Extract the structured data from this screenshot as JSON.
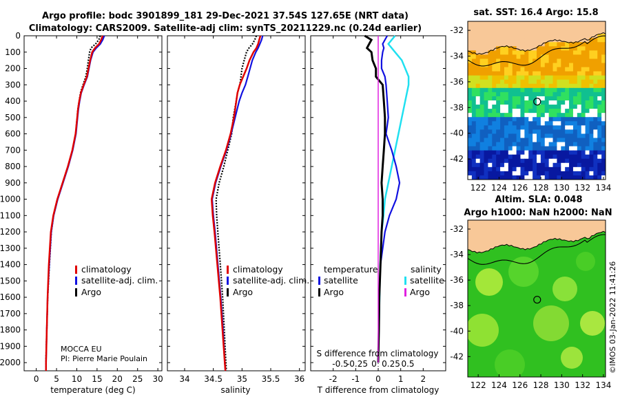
{
  "header": {
    "line1": "Argo profile: bodc 3901899_181 29-Dec-2021 37.54S 127.65E (NRT data)",
    "line2": "Climatology: CARS2009. Satellite-adj clim: synTS_20211229.nc (0.24d earlier)"
  },
  "colors": {
    "climatology": "#e00000",
    "satellite": "#1010e0",
    "argo": "#000000",
    "sal_satellite": "#20e0f0",
    "sal_argo": "#e020e0",
    "land": "#f8c898"
  },
  "depth_ticks": [
    "0",
    "100",
    "200",
    "300",
    "400",
    "500",
    "600",
    "700",
    "800",
    "900",
    "1000",
    "1100",
    "1200",
    "1300",
    "1400",
    "1500",
    "1600",
    "1700",
    "1800",
    "1900",
    "2000"
  ],
  "chart_data": [
    {
      "type": "line",
      "name": "temperature",
      "xlabel": "temperature (deg C)",
      "ylabel": "",
      "xlim": [
        -3,
        31
      ],
      "ylim": [
        2050,
        0
      ],
      "xticks": [
        "0",
        "5",
        "10",
        "15",
        "20",
        "25",
        "30"
      ],
      "xtick_values": [
        0,
        5,
        10,
        15,
        20,
        25,
        30
      ],
      "depth": [
        0,
        25,
        50,
        75,
        100,
        150,
        200,
        250,
        300,
        350,
        400,
        450,
        500,
        600,
        700,
        800,
        900,
        1000,
        1100,
        1200,
        1400,
        1600,
        1800,
        2000,
        2050
      ],
      "series": [
        {
          "name": "climatology",
          "values": [
            16.4,
            16.0,
            15.5,
            14.5,
            13.8,
            13.3,
            12.9,
            12.5,
            11.7,
            11.0,
            10.6,
            10.3,
            10.1,
            9.7,
            8.9,
            7.8,
            6.5,
            5.2,
            4.2,
            3.6,
            3.1,
            2.8,
            2.6,
            2.4,
            2.4
          ]
        },
        {
          "name": "satellite-adj. clim.",
          "values": [
            16.8,
            16.4,
            15.8,
            14.8,
            14.0,
            13.4,
            13.0,
            12.6,
            11.8,
            11.1,
            10.7,
            10.4,
            10.2,
            9.8,
            9.0,
            7.9,
            6.6,
            5.3,
            4.3,
            3.7,
            3.2,
            2.8,
            2.6,
            2.4,
            2.4
          ]
        },
        {
          "name": "Argo",
          "values": [
            15.8,
            15.4,
            14.6,
            13.5,
            13.2,
            12.9,
            12.6,
            12.2,
            11.5,
            10.9,
            10.6,
            10.3,
            10.1,
            9.7,
            8.9,
            7.8,
            6.5,
            5.3,
            4.3,
            3.7,
            3.2,
            2.8,
            2.6,
            2.4,
            2.4
          ]
        }
      ],
      "legend": [
        "climatology",
        "satellite-adj. clim.",
        "Argo"
      ],
      "annotations": [
        "MOCCA EU",
        "PI: Pierre Marie Poulain"
      ]
    },
    {
      "type": "line",
      "name": "salinity",
      "xlabel": "salinity",
      "xlim": [
        33.7,
        36.1
      ],
      "ylim": [
        2050,
        0
      ],
      "xticks": [
        "34",
        "34.5",
        "35",
        "35.5",
        "36"
      ],
      "xtick_values": [
        34,
        34.5,
        35,
        35.5,
        36
      ],
      "depth": [
        0,
        25,
        50,
        75,
        100,
        150,
        200,
        250,
        300,
        350,
        400,
        500,
        600,
        700,
        800,
        900,
        1000,
        1100,
        1200,
        1400,
        1600,
        1800,
        2000,
        2050
      ],
      "series": [
        {
          "name": "climatology",
          "values": [
            35.32,
            35.3,
            35.28,
            35.25,
            35.2,
            35.13,
            35.08,
            35.02,
            34.96,
            34.92,
            34.9,
            34.86,
            34.8,
            34.72,
            34.62,
            34.53,
            34.47,
            34.49,
            34.52,
            34.57,
            34.62,
            34.66,
            34.7,
            34.71
          ]
        },
        {
          "name": "satellite-adj. clim.",
          "values": [
            35.36,
            35.34,
            35.31,
            35.28,
            35.24,
            35.18,
            35.14,
            35.1,
            35.06,
            35.0,
            34.95,
            34.88,
            34.81,
            34.73,
            34.63,
            34.54,
            34.48,
            34.5,
            34.53,
            34.58,
            34.63,
            34.67,
            34.7,
            34.71
          ]
        },
        {
          "name": "Argo",
          "values": [
            35.25,
            35.22,
            35.18,
            35.12,
            35.08,
            35.04,
            35.0,
            34.98,
            34.96,
            34.92,
            34.9,
            34.85,
            34.82,
            34.75,
            34.68,
            34.6,
            34.55,
            34.56,
            34.58,
            34.62,
            34.66,
            34.69,
            34.72,
            34.73
          ]
        }
      ],
      "legend": [
        "climatology",
        "satellite-adj. clim.",
        "Argo"
      ]
    },
    {
      "type": "line",
      "name": "differences",
      "xlabel": "T difference from climatology",
      "xlabel_top": "S difference from climatology",
      "xlim": [
        -3,
        3
      ],
      "ylim": [
        2050,
        0
      ],
      "xticks": [
        "-2",
        "-1",
        "0",
        "1",
        "2"
      ],
      "xtick_values": [
        -2,
        -1,
        0,
        1,
        2
      ],
      "sticks_labels": [
        "-0.5",
        "-0.25",
        "0",
        "0.25",
        "0.5"
      ],
      "depth": [
        0,
        25,
        50,
        75,
        100,
        150,
        200,
        250,
        300,
        400,
        500,
        600,
        700,
        800,
        900,
        1000,
        1100,
        1200,
        1400,
        1600,
        1800,
        2000
      ],
      "series": [
        {
          "name": "temperature satellite",
          "values": [
            0.4,
            0.3,
            0.2,
            0.25,
            0.2,
            0.15,
            0.15,
            0.3,
            0.35,
            0.4,
            0.45,
            0.35,
            0.6,
            0.8,
            0.95,
            0.8,
            0.5,
            0.3,
            0.1,
            0.05,
            0.03,
            0.0
          ]
        },
        {
          "name": "temperature Argo",
          "values": [
            -0.6,
            -0.3,
            -0.4,
            -0.5,
            -0.3,
            -0.25,
            -0.1,
            -0.1,
            0.2,
            0.25,
            0.3,
            0.3,
            0.25,
            0.2,
            0.15,
            0.2,
            0.2,
            0.15,
            0.1,
            0.05,
            0.03,
            0.0
          ]
        },
        {
          "name": "salinity satellite",
          "values": [
            0.25,
            0.2,
            0.15,
            0.2,
            0.25,
            0.35,
            0.4,
            0.45,
            0.45,
            0.4,
            0.35,
            0.3,
            0.25,
            0.2,
            0.15,
            0.1,
            0.08,
            0.05,
            0.03,
            0.02,
            0.01,
            0.0
          ]
        },
        {
          "name": "salinity Argo",
          "values": [
            0.0,
            0.0,
            0.0,
            0.0,
            0.0,
            0.0,
            0.0,
            0.0,
            0.0,
            0.0,
            0.0,
            0.0,
            0.0,
            0.0,
            0.0,
            0.0,
            0.0,
            0.0,
            0.0,
            0.0,
            0.0,
            0.0
          ]
        }
      ],
      "legend_groups": {
        "temperature": [
          "satellite",
          "Argo"
        ],
        "salinity": [
          "satellite",
          "Argo"
        ]
      }
    }
  ],
  "maps": [
    {
      "title": "sat. SST: 16.4 Argo: 15.8",
      "title2": "",
      "yticks": [
        "-32",
        "-34",
        "-36",
        "-38",
        "-40",
        "-42"
      ],
      "xticks": [
        "122",
        "124",
        "126",
        "128",
        "130",
        "132",
        "134"
      ],
      "marker": {
        "lon": 127.65,
        "lat": -37.54
      }
    },
    {
      "title": "Altim. SLA: 0.048",
      "title2": "Argo h1000: NaN h2000: NaN",
      "yticks": [
        "-32",
        "-34",
        "-36",
        "-38",
        "-40",
        "-42"
      ],
      "xticks": [
        "122",
        "124",
        "126",
        "128",
        "130",
        "132",
        "134"
      ],
      "marker": {
        "lon": 127.65,
        "lat": -37.54
      }
    }
  ],
  "watermark": "©IMOS 03-Jan-2022 11:41:26"
}
